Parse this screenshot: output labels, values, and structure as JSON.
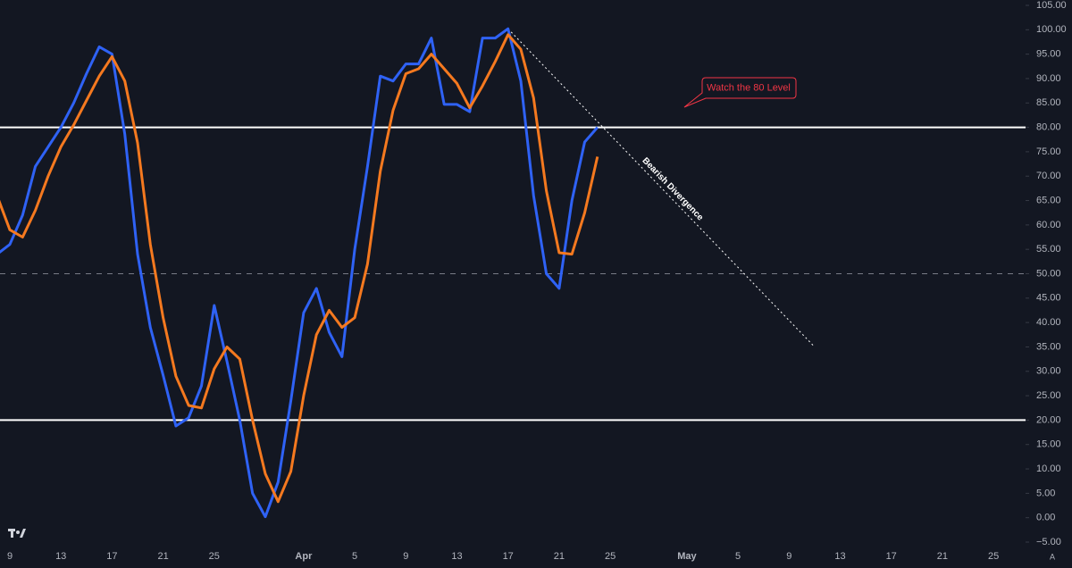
{
  "chart_data": {
    "type": "line",
    "categories": [
      null,
      "9",
      null,
      null,
      null,
      "13",
      null,
      null,
      null,
      "17",
      null,
      null,
      null,
      "21",
      null,
      null,
      null,
      "25",
      null,
      null,
      null,
      null,
      null,
      null,
      "Apr",
      null,
      null,
      null,
      "5",
      null,
      null,
      null,
      "9",
      null,
      null,
      null,
      "13",
      null,
      null,
      null,
      "17",
      null,
      null,
      null,
      "21",
      null,
      null,
      null,
      "25",
      null,
      null,
      null,
      null,
      null,
      "May",
      null,
      null,
      null,
      "5",
      null,
      null,
      null,
      "9",
      null,
      null,
      null,
      "13",
      null,
      null,
      null,
      "17",
      null,
      null,
      null,
      "21",
      null,
      null,
      null,
      "25",
      null,
      null
    ],
    "series": [
      {
        "color": "#2f62f5",
        "values": [
          54,
          56,
          62,
          72,
          76,
          80,
          85,
          91,
          96.5,
          95,
          78.6,
          54,
          39,
          29.2,
          18.8,
          20.5,
          27,
          43.5,
          32,
          20,
          5,
          0.2,
          7.3,
          24,
          42,
          47,
          38,
          33,
          55,
          72,
          90.5,
          89.5,
          93,
          93,
          98.3,
          84.7,
          84.7,
          83.2,
          98.3,
          98.3,
          100.2,
          89.5,
          66,
          50,
          47,
          65,
          77,
          80,
          null,
          null,
          null,
          null,
          null,
          null,
          null,
          null,
          null,
          null,
          null,
          null,
          null,
          null,
          null,
          null,
          null,
          null,
          null,
          null,
          null,
          null,
          null,
          null,
          null,
          null,
          null,
          null,
          null,
          null,
          null,
          null,
          null
        ]
      },
      {
        "color": "#f5791f",
        "values": [
          66,
          59,
          57.5,
          63,
          70,
          76,
          80.5,
          85.5,
          90.5,
          94.5,
          89.5,
          76.8,
          56,
          41,
          29,
          23,
          22.5,
          30.5,
          35,
          32.5,
          20,
          9,
          3.3,
          9.5,
          25,
          37.5,
          42.5,
          39,
          41,
          52,
          71,
          83.5,
          91,
          92,
          95,
          92,
          89,
          84,
          88.5,
          93.5,
          99,
          96,
          86,
          67,
          54.3,
          54,
          62.5,
          74,
          null,
          null,
          null,
          null,
          null,
          null,
          null,
          null,
          null,
          null,
          null,
          null,
          null,
          null,
          null,
          null,
          null,
          null,
          null,
          null,
          null,
          null,
          null,
          null,
          null,
          null,
          null,
          null,
          null,
          null,
          null,
          null,
          null
        ]
      }
    ],
    "ylim": [
      -5,
      105
    ],
    "yticks": [
      {
        "value": 105,
        "label": "105.00"
      },
      {
        "value": 100,
        "label": "100.00"
      },
      {
        "value": 95,
        "label": "95.00"
      },
      {
        "value": 90,
        "label": "90.00"
      },
      {
        "value": 85,
        "label": "85.00"
      },
      {
        "value": 80,
        "label": "80.00"
      },
      {
        "value": 75,
        "label": "75.00"
      },
      {
        "value": 70,
        "label": "70.00"
      },
      {
        "value": 65,
        "label": "65.00"
      },
      {
        "value": 60,
        "label": "60.00"
      },
      {
        "value": 55,
        "label": "55.00"
      },
      {
        "value": 50,
        "label": "50.00"
      },
      {
        "value": 45,
        "label": "45.00"
      },
      {
        "value": 40,
        "label": "40.00"
      },
      {
        "value": 35,
        "label": "35.00"
      },
      {
        "value": 30,
        "label": "30.00"
      },
      {
        "value": 25,
        "label": "25.00"
      },
      {
        "value": 20,
        "label": "20.00"
      },
      {
        "value": 15,
        "label": "15.00"
      },
      {
        "value": 10,
        "label": "10.00"
      },
      {
        "value": 5,
        "label": "5.00"
      },
      {
        "value": 0,
        "label": "0.00"
      },
      {
        "value": -5,
        "label": "−5.00"
      }
    ],
    "levels": [
      {
        "value": 80,
        "color": "#ffffff",
        "dashed": false
      },
      {
        "value": 50,
        "color": "#787b86",
        "dashed": true
      },
      {
        "value": 20,
        "color": "#ffffff",
        "dashed": false
      }
    ],
    "trendline": {
      "label": "Bearish Divergence",
      "x": [
        40,
        64
      ],
      "y": [
        100.2,
        35
      ],
      "color": "#ffffff"
    },
    "callout": {
      "text": "Watch the 80 Level",
      "color": "#f23645"
    },
    "auto_scale_label": "A"
  }
}
